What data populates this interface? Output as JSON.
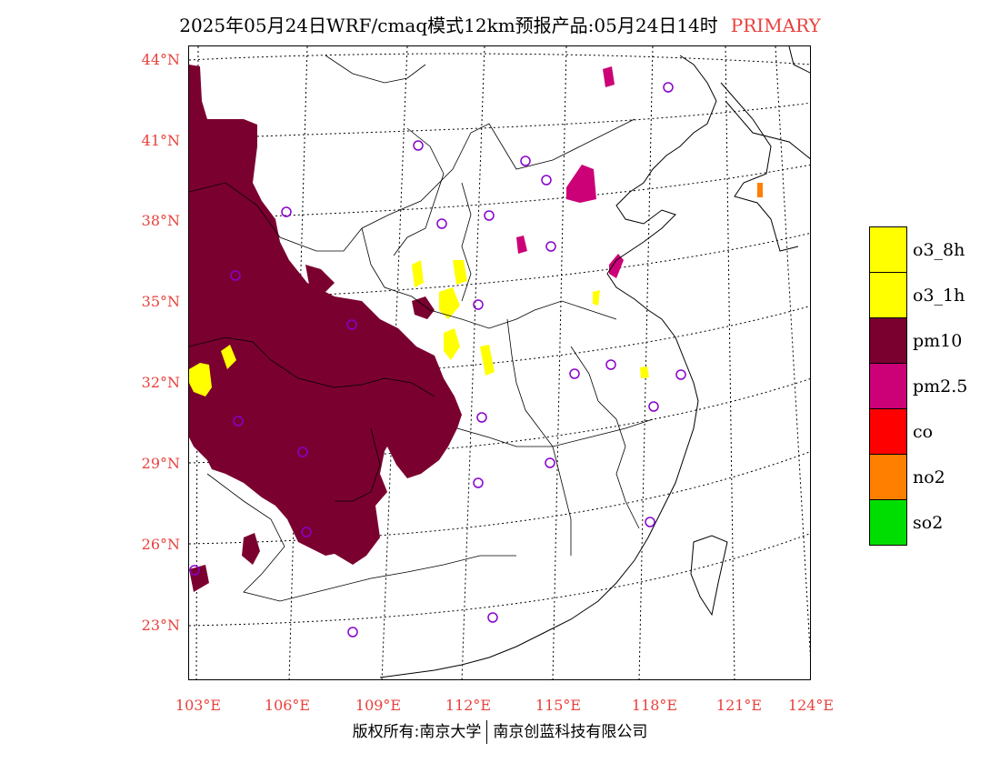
{
  "header": {
    "title": "2025年05月24日WRF/cmaq模式12km预报产品:05月24日14时",
    "tag": "PRIMARY"
  },
  "axes": {
    "lat_labels": [
      "44°N",
      "41°N",
      "38°N",
      "35°N",
      "32°N",
      "29°N",
      "26°N",
      "23°N"
    ],
    "lon_labels": [
      "103°E",
      "106°E",
      "109°E",
      "112°E",
      "115°E",
      "118°E",
      "121°E",
      "124°E"
    ]
  },
  "legend": {
    "items": [
      {
        "label": "o3_8h",
        "color": "#ffff00"
      },
      {
        "label": "o3_1h",
        "color": "#ffff00"
      },
      {
        "label": "pm10",
        "color": "#7a0030"
      },
      {
        "label": "pm2.5",
        "color": "#cc0077"
      },
      {
        "label": "co",
        "color": "#ff0000"
      },
      {
        "label": "no2",
        "color": "#ff7f00"
      },
      {
        "label": "so2",
        "color": "#00dd00"
      }
    ]
  },
  "colors": {
    "accent": "#e8413c",
    "station_marker": "#8800cc"
  },
  "footer": {
    "left": "版权所有:南京大学",
    "right": "南京创蓝科技有限公司"
  }
}
